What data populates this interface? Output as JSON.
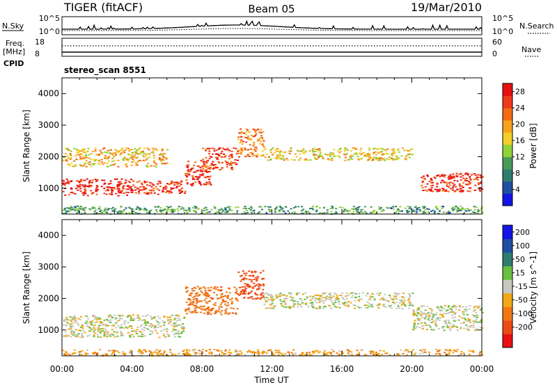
{
  "header": {
    "title": "TIGER (fitACF)",
    "beam": "Beam 05",
    "date": "19/Mar/2010"
  },
  "top_panels": {
    "nsky_label": "N.Sky",
    "nsky_ticks_left": [
      "10^5",
      "10^0"
    ],
    "nsky_ticks_right": [
      "10^5",
      "10^0"
    ],
    "nsearch_label": "N.Search",
    "freq_label_1": "Freq.",
    "freq_label_2": "[MHz]",
    "freq_ticks": [
      "18",
      "8"
    ],
    "nave_ticks": [
      "60",
      "0"
    ],
    "nave_label": "Nave",
    "cpid_label": "CPID",
    "cpid_value": "stereo_scan 8551"
  },
  "colors": {
    "power_scale": [
      "#1414e6",
      "#1f4fa0",
      "#2e7d6e",
      "#4a9a5a",
      "#8fd23a",
      "#f2cf2a",
      "#f7a21d",
      "#f56a14",
      "#f0391a",
      "#e61010"
    ],
    "velocity_scale": [
      "#1414e6",
      "#1f4fa0",
      "#2e7d6e",
      "#6abf40",
      "#c8c8c0",
      "#f2a814",
      "#f07814",
      "#ee4a14",
      "#e81010"
    ]
  },
  "chart_data": [
    {
      "type": "heatmap",
      "title": "",
      "xlabel": "Time UT",
      "ylabel": "Slant Range [km]",
      "x_ticks": [
        "00:00",
        "04:00",
        "08:00",
        "12:00",
        "16:00",
        "20:00",
        "00:00"
      ],
      "xlim": [
        0,
        24
      ],
      "ylim": [
        180,
        4500
      ],
      "y_ticks": [
        "1000",
        "2000",
        "3000",
        "4000"
      ],
      "y_tick_values": [
        1000,
        2000,
        3000,
        4000
      ],
      "colorbar_label": "Power [dB]",
      "colorbar_ticks": [
        "4",
        "8",
        "12",
        "16",
        "20",
        "24",
        "28"
      ],
      "colorbar_tick_values": [
        4,
        8,
        12,
        16,
        20,
        24,
        28
      ],
      "colorbar_range": [
        0,
        30
      ],
      "bands": [
        {
          "t": [
            0.0,
            4.0
          ],
          "r": [
            780,
            1320
          ],
          "level": 28
        },
        {
          "t": [
            4.0,
            7.0
          ],
          "r": [
            820,
            1250
          ],
          "level": 26
        },
        {
          "t": [
            7.0,
            8.5
          ],
          "r": [
            1100,
            1900
          ],
          "level": 27
        },
        {
          "t": [
            8.0,
            10.0
          ],
          "r": [
            1600,
            2300
          ],
          "level": 25
        },
        {
          "t": [
            10.0,
            11.5
          ],
          "r": [
            2000,
            2900
          ],
          "level": 22
        },
        {
          "t": [
            11.5,
            20.0
          ],
          "r": [
            1900,
            2300
          ],
          "level": 17
        },
        {
          "t": [
            20.5,
            24.0
          ],
          "r": [
            900,
            1500
          ],
          "level": 27
        },
        {
          "t": [
            0.0,
            6.0
          ],
          "r": [
            1700,
            2300
          ],
          "level": 18
        },
        {
          "t": [
            0.0,
            24.0
          ],
          "r": [
            200,
            450
          ],
          "level": 10
        }
      ]
    },
    {
      "type": "heatmap",
      "title": "",
      "xlabel": "Time UT",
      "ylabel": "Slant Range [km]",
      "x_ticks": [
        "00:00",
        "04:00",
        "08:00",
        "12:00",
        "16:00",
        "20:00",
        "00:00"
      ],
      "xlim": [
        0,
        24
      ],
      "ylim": [
        180,
        4500
      ],
      "y_ticks": [
        "1000",
        "2000",
        "3000",
        "4000"
      ],
      "y_tick_values": [
        1000,
        2000,
        3000,
        4000
      ],
      "colorbar_label": "Velocity [m s^-1]",
      "colorbar_ticks": [
        "200",
        "100",
        "50",
        "15",
        "-15",
        "-50",
        "-100",
        "-200"
      ],
      "colorbar_tick_values": [
        200,
        100,
        50,
        15,
        -15,
        -50,
        -100,
        -200
      ],
      "bands": [
        {
          "t": [
            0.0,
            7.0
          ],
          "r": [
            780,
            1500
          ],
          "level": 0
        },
        {
          "t": [
            7.0,
            10.0
          ],
          "r": [
            1500,
            2400
          ],
          "level": -80
        },
        {
          "t": [
            10.0,
            11.5
          ],
          "r": [
            2000,
            2900
          ],
          "level": -150
        },
        {
          "t": [
            11.5,
            20.0
          ],
          "r": [
            1700,
            2200
          ],
          "level": 0
        },
        {
          "t": [
            20.0,
            24.0
          ],
          "r": [
            1000,
            1800
          ],
          "level": 0
        },
        {
          "t": [
            0.0,
            24.0
          ],
          "r": [
            200,
            400
          ],
          "level": -40
        }
      ]
    }
  ]
}
